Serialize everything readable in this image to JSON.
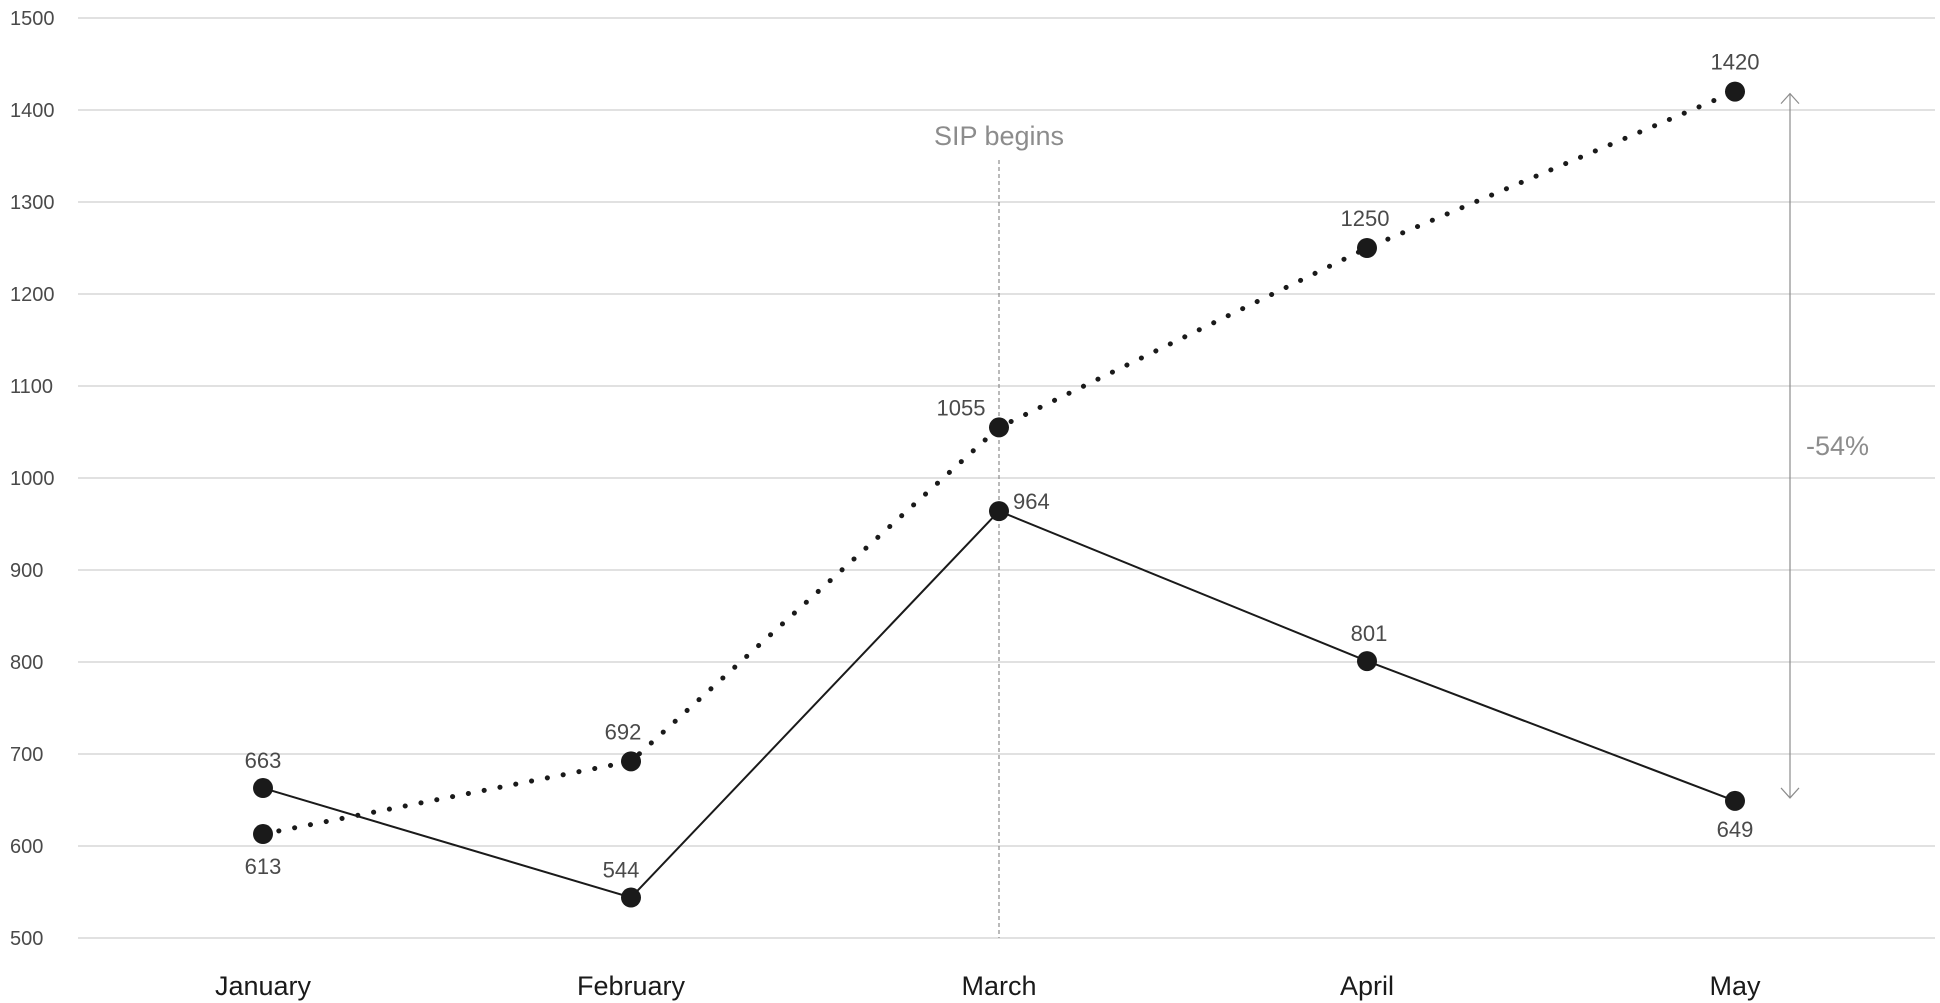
{
  "chart_data": {
    "type": "line",
    "categories": [
      "January",
      "February",
      "March",
      "April",
      "May"
    ],
    "ylim": [
      500,
      1500
    ],
    "yticks": [
      500,
      600,
      700,
      800,
      900,
      1000,
      1100,
      1200,
      1300,
      1400,
      1500
    ],
    "grid": true,
    "series": [
      {
        "style": "dotted",
        "values": [
          613,
          692,
          1055,
          1250,
          1420
        ],
        "labels": [
          "613",
          "692",
          "1055",
          "1250",
          "1420"
        ]
      },
      {
        "style": "solid",
        "values": [
          663,
          544,
          964,
          801,
          649
        ],
        "labels": [
          "663",
          "544",
          "964",
          "801",
          "649"
        ]
      }
    ],
    "annotations": {
      "event_marker": {
        "category": "March",
        "text": "SIP begins"
      },
      "gap_arrow": {
        "category": "May",
        "text": "-54%",
        "from": 1420,
        "to": 649
      }
    },
    "colors": {
      "series": "#1a1a1a",
      "grid": "#cfcfcf",
      "annotation": "#8c8c8c",
      "text": "#4a4a4a"
    }
  }
}
